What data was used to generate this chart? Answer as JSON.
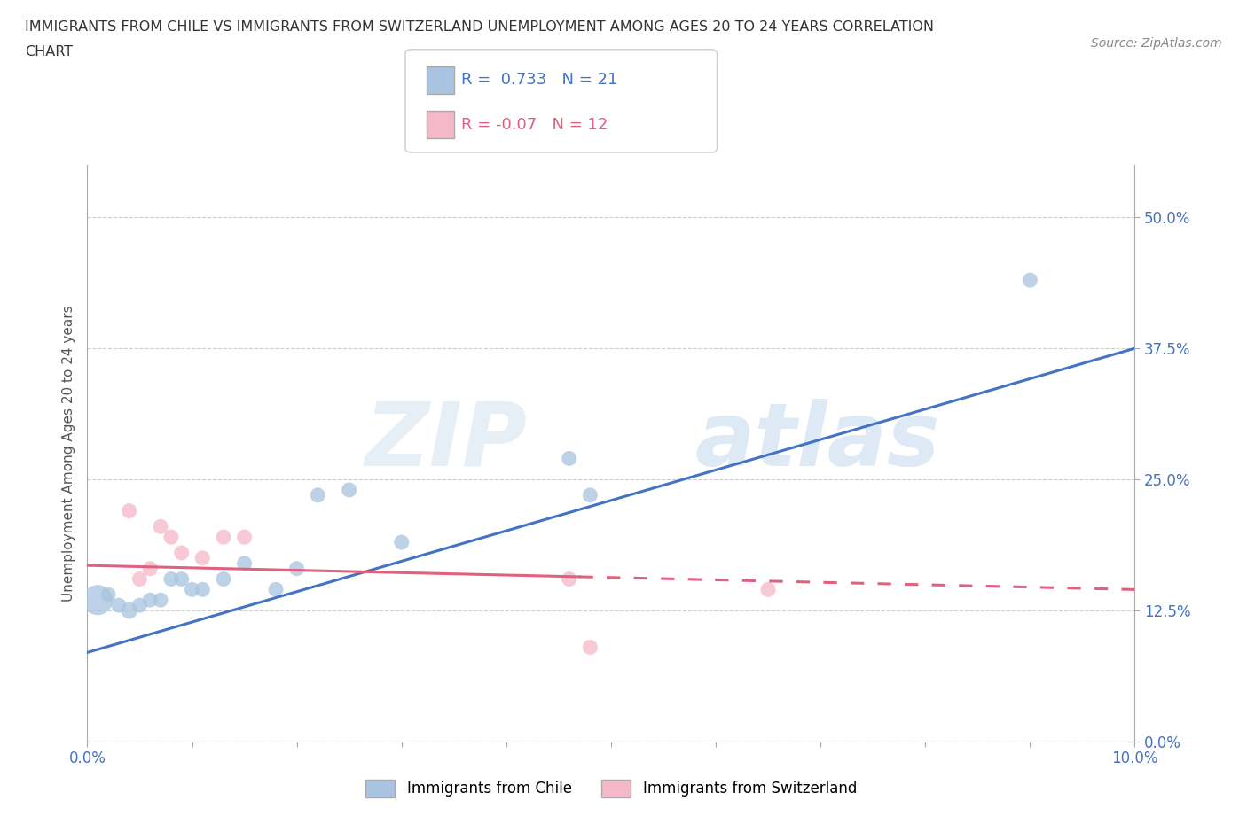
{
  "title_line1": "IMMIGRANTS FROM CHILE VS IMMIGRANTS FROM SWITZERLAND UNEMPLOYMENT AMONG AGES 20 TO 24 YEARS CORRELATION",
  "title_line2": "CHART",
  "source_text": "Source: ZipAtlas.com",
  "ylabel": "Unemployment Among Ages 20 to 24 years",
  "watermark": "ZIPatlas",
  "xlim": [
    0.0,
    0.1
  ],
  "ylim": [
    0.0,
    0.55
  ],
  "yticks": [
    0.0,
    0.125,
    0.25,
    0.375,
    0.5
  ],
  "ytick_labels": [
    "0.0%",
    "12.5%",
    "25.0%",
    "37.5%",
    "50.0%"
  ],
  "xticks": [
    0.0,
    0.01,
    0.02,
    0.03,
    0.04,
    0.05,
    0.06,
    0.07,
    0.08,
    0.09,
    0.1
  ],
  "xtick_labels": [
    "0.0%",
    "",
    "",
    "",
    "",
    "",
    "",
    "",
    "",
    "",
    "10.0%"
  ],
  "chile_color": "#a8c4e0",
  "chile_line_color": "#4472c4",
  "swiss_color": "#f4b8c8",
  "swiss_line_color": "#e06080",
  "R_chile": 0.733,
  "N_chile": 21,
  "R_swiss": -0.07,
  "N_swiss": 12,
  "chile_line_x0": 0.0,
  "chile_line_y0": 0.085,
  "chile_line_x1": 0.1,
  "chile_line_y1": 0.375,
  "swiss_line_x0": 0.0,
  "swiss_line_y0": 0.168,
  "swiss_line_x1": 0.1,
  "swiss_line_y1": 0.145,
  "swiss_line_dash_x0": 0.047,
  "swiss_line_dash_x1": 0.1,
  "chile_points": [
    [
      0.001,
      0.135
    ],
    [
      0.002,
      0.14
    ],
    [
      0.003,
      0.13
    ],
    [
      0.004,
      0.125
    ],
    [
      0.005,
      0.13
    ],
    [
      0.006,
      0.135
    ],
    [
      0.007,
      0.135
    ],
    [
      0.008,
      0.155
    ],
    [
      0.009,
      0.155
    ],
    [
      0.01,
      0.145
    ],
    [
      0.011,
      0.145
    ],
    [
      0.013,
      0.155
    ],
    [
      0.015,
      0.17
    ],
    [
      0.018,
      0.145
    ],
    [
      0.02,
      0.165
    ],
    [
      0.022,
      0.235
    ],
    [
      0.025,
      0.24
    ],
    [
      0.03,
      0.19
    ],
    [
      0.046,
      0.27
    ],
    [
      0.048,
      0.235
    ],
    [
      0.09,
      0.44
    ]
  ],
  "swiss_points": [
    [
      0.004,
      0.22
    ],
    [
      0.005,
      0.155
    ],
    [
      0.006,
      0.165
    ],
    [
      0.007,
      0.205
    ],
    [
      0.008,
      0.195
    ],
    [
      0.009,
      0.18
    ],
    [
      0.011,
      0.175
    ],
    [
      0.013,
      0.195
    ],
    [
      0.015,
      0.195
    ],
    [
      0.046,
      0.155
    ],
    [
      0.048,
      0.09
    ],
    [
      0.065,
      0.145
    ]
  ],
  "chile_sizes": [
    600,
    150,
    150,
    180,
    150,
    150,
    150,
    150,
    150,
    150,
    150,
    150,
    150,
    150,
    150,
    150,
    150,
    150,
    150,
    150,
    150
  ],
  "swiss_sizes": [
    150,
    150,
    150,
    150,
    150,
    150,
    150,
    150,
    150,
    150,
    150,
    150
  ],
  "legend_label_chile": "Immigrants from Chile",
  "legend_label_swiss": "Immigrants from Switzerland"
}
